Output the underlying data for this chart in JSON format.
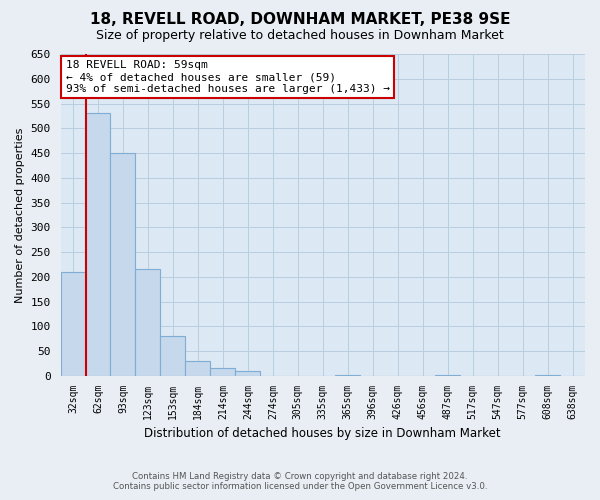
{
  "title": "18, REVELL ROAD, DOWNHAM MARKET, PE38 9SE",
  "subtitle": "Size of property relative to detached houses in Downham Market",
  "xlabel": "Distribution of detached houses by size in Downham Market",
  "ylabel": "Number of detached properties",
  "bar_labels": [
    "32sqm",
    "62sqm",
    "93sqm",
    "123sqm",
    "153sqm",
    "184sqm",
    "214sqm",
    "244sqm",
    "274sqm",
    "305sqm",
    "335sqm",
    "365sqm",
    "396sqm",
    "426sqm",
    "456sqm",
    "487sqm",
    "517sqm",
    "547sqm",
    "577sqm",
    "608sqm",
    "638sqm"
  ],
  "bar_values": [
    210,
    530,
    450,
    215,
    80,
    30,
    15,
    10,
    0,
    0,
    0,
    2,
    0,
    0,
    0,
    1,
    0,
    0,
    0,
    1,
    0
  ],
  "bar_color": "#c5d8ec",
  "bar_edge_color": "#7fadd4",
  "ylim": [
    0,
    650
  ],
  "yticks": [
    0,
    50,
    100,
    150,
    200,
    250,
    300,
    350,
    400,
    450,
    500,
    550,
    600,
    650
  ],
  "annotation_title": "18 REVELL ROAD: 59sqm",
  "annotation_line1": "← 4% of detached houses are smaller (59)",
  "annotation_line2": "93% of semi-detached houses are larger (1,433) →",
  "marker_line_color": "#cc0000",
  "annotation_box_color": "#ffffff",
  "annotation_box_edge": "#cc0000",
  "footer1": "Contains HM Land Registry data © Crown copyright and database right 2024.",
  "footer2": "Contains public sector information licensed under the Open Government Licence v3.0.",
  "bg_color": "#e8eef4",
  "plot_bg_color": "#dce8f4",
  "grid_color": "#b8cfe0"
}
